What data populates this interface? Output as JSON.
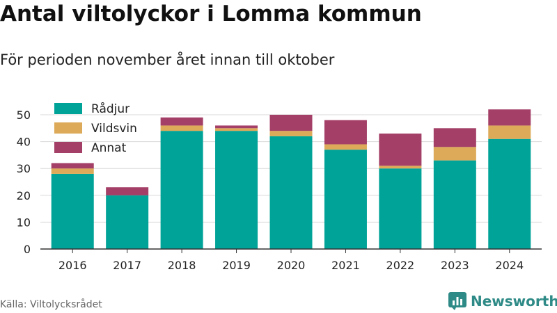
{
  "header": {
    "title": "Antal viltolyckor i Lomma kommun",
    "subtitle": "För perioden november året innan till oktober"
  },
  "footer": {
    "source": "Källa: Viltolycksrådet",
    "brand": "Newsworthy"
  },
  "colors": {
    "radjur": "#00a398",
    "vildsvin": "#dcaa58",
    "annat": "#a43f67",
    "grid": "#d9d9d9",
    "axis": "#333333",
    "brand": "#2e8a86"
  },
  "icons": {
    "brand_logo": "bar-chart-logo-icon"
  },
  "chart_data": {
    "type": "bar",
    "stacked": true,
    "categories": [
      "2016",
      "2017",
      "2018",
      "2019",
      "2020",
      "2021",
      "2022",
      "2023",
      "2024"
    ],
    "series": [
      {
        "name": "Rådjur",
        "color": "#00a398",
        "values": [
          28,
          20,
          44,
          44,
          42,
          37,
          30,
          33,
          41
        ]
      },
      {
        "name": "Vildsvin",
        "color": "#dcaa58",
        "values": [
          2,
          0,
          2,
          1,
          2,
          2,
          1,
          5,
          5
        ]
      },
      {
        "name": "Annat",
        "color": "#a43f67",
        "values": [
          2,
          3,
          3,
          1,
          6,
          9,
          12,
          7,
          6
        ]
      }
    ],
    "ylim": [
      0,
      50
    ],
    "yticks": [
      0,
      10,
      20,
      30,
      40,
      50
    ],
    "grid": true,
    "legend": "top-left"
  }
}
